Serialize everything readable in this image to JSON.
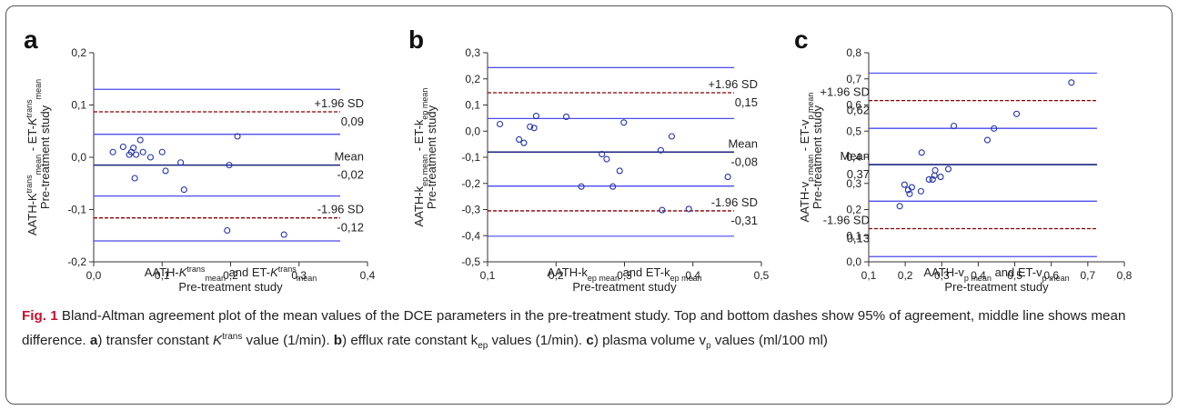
{
  "panels": [
    {
      "letter": "a",
      "ylabel": [
        "AATH-K",
        "trans",
        "mean",
        " - ET-",
        "K",
        "trans",
        "mean"
      ],
      "ylabel2": "Pre-treatment study",
      "xlabel": [
        "AATH-",
        "K",
        "trans",
        "mean",
        " and ET-",
        "K",
        "trans",
        "mean"
      ],
      "xlabel2": "Pre-treatment study",
      "annotations": {
        "upper_label": "+1.96 SD",
        "upper_value": "0,09",
        "mean_label": "Mean",
        "mean_value": "-0,02",
        "lower_label": "-1.96 SD",
        "lower_value": "-0,12"
      }
    },
    {
      "letter": "b",
      "ylabel": [
        "AATH-k",
        "ep mean",
        " - ET-k",
        "ep mean"
      ],
      "ylabel2": "Pre-treatment study",
      "xlabel": [
        "AATH-k",
        "ep mean",
        " and ET-k",
        "ep mean"
      ],
      "xlabel2": "Pre-treatment study",
      "annotations": {
        "upper_label": "+1.96 SD",
        "upper_value": "0,15",
        "mean_label": "Mean",
        "mean_value": "-0,08",
        "lower_label": "-1.96 SD",
        "lower_value": "-0,31"
      }
    },
    {
      "letter": "c",
      "ylabel": [
        "AATH-v",
        "p mean",
        " - ET-v",
        "p mean"
      ],
      "ylabel2": "Pre-treatment study",
      "xlabel": [
        "AATH-v",
        "p mean",
        " and ET-v",
        "p mean"
      ],
      "xlabel2": "Pre-treatment study",
      "annotations": {
        "upper_label": "+1.96 SD",
        "upper_value": "0,62",
        "mean_label": "Mean",
        "mean_value": "0,37",
        "lower_label": "-1.96 SD",
        "lower_value": "0,13"
      }
    }
  ],
  "caption": {
    "fig_label": "Fig. 1",
    "text1": " Bland-Altman agreement plot of the mean values of the DCE parameters in the pre-treatment study. Top and bottom dashes show 95% of agreement, middle line shows mean difference. ",
    "a": "a",
    "text2": ") transfer constant ",
    "ktrans_k": "K",
    "ktrans_sup": "trans",
    "text3": " value (1/min). ",
    "b": "b",
    "text4": ") efflux rate constant k",
    "kep_sub": "ep",
    "text5": " values (1/min). ",
    "c": "c",
    "text6": ") plasma volume v",
    "vp_sub": "p",
    "text7": " values (ml/100 ml)"
  },
  "colors": {
    "mean_line": "#1a237e",
    "limit_line": "#8b0000",
    "ci_line": "#4a4aee",
    "point": "#2233aa"
  },
  "chart_data": [
    {
      "type": "scatter",
      "xlim": [
        0.0,
        0.4
      ],
      "ylim": [
        -0.2,
        0.2
      ],
      "xticks": [
        "0,0",
        "0,1",
        "0,2",
        "0,3",
        "0,4"
      ],
      "yticks": [
        "0,2",
        "0,1",
        "0,0",
        "-0,1",
        "-0,2"
      ],
      "points": [
        [
          0.028,
          0.01
        ],
        [
          0.043,
          0.02
        ],
        [
          0.052,
          0.005
        ],
        [
          0.055,
          0.01
        ],
        [
          0.058,
          0.018
        ],
        [
          0.06,
          -0.04
        ],
        [
          0.062,
          0.005
        ],
        [
          0.068,
          0.033
        ],
        [
          0.072,
          0.01
        ],
        [
          0.083,
          0.0
        ],
        [
          0.1,
          0.01
        ],
        [
          0.105,
          -0.026
        ],
        [
          0.127,
          -0.01
        ],
        [
          0.132,
          -0.062
        ],
        [
          0.195,
          -0.14
        ],
        [
          0.198,
          -0.015
        ],
        [
          0.21,
          0.04
        ],
        [
          0.278,
          -0.148
        ]
      ],
      "mean": -0.015,
      "upper_limit": 0.087,
      "lower_limit": -0.116,
      "mean_ci": [
        -0.074,
        0.044
      ],
      "upper_ci": [
        0.044,
        0.13
      ],
      "lower_ci": [
        -0.16,
        -0.074
      ]
    },
    {
      "type": "scatter",
      "xlim": [
        0.1,
        0.5
      ],
      "ylim": [
        -0.5,
        0.3
      ],
      "xticks": [
        "0,1",
        "0,2",
        "0,3",
        "0,4",
        "0,5"
      ],
      "yticks": [
        "0,3",
        "0,2",
        "0,1",
        "0,0",
        "-0,1",
        "-0,2",
        "-0,3",
        "-0,4",
        "-0,5"
      ],
      "points": [
        [
          0.118,
          0.027
        ],
        [
          0.146,
          -0.032
        ],
        [
          0.153,
          -0.045
        ],
        [
          0.162,
          0.017
        ],
        [
          0.168,
          0.012
        ],
        [
          0.171,
          0.058
        ],
        [
          0.215,
          0.055
        ],
        [
          0.237,
          -0.212
        ],
        [
          0.267,
          -0.088
        ],
        [
          0.274,
          -0.107
        ],
        [
          0.283,
          -0.212
        ],
        [
          0.293,
          -0.152
        ],
        [
          0.299,
          0.033
        ],
        [
          0.353,
          -0.073
        ],
        [
          0.355,
          -0.302
        ],
        [
          0.369,
          -0.02
        ],
        [
          0.394,
          -0.298
        ],
        [
          0.451,
          -0.175
        ]
      ],
      "mean": -0.08,
      "upper_limit": 0.147,
      "lower_limit": -0.305,
      "mean_ci": [
        -0.21,
        0.048
      ],
      "upper_ci": [
        0.048,
        0.243
      ],
      "lower_ci": [
        -0.402,
        -0.21
      ]
    },
    {
      "type": "scatter",
      "xlim": [
        0.1,
        0.8
      ],
      "ylim": [
        0.0,
        0.8
      ],
      "xticks": [
        "0,1",
        "0,2",
        "0,3",
        "0,4",
        "0,5",
        "0,6",
        "0,7",
        "0,8"
      ],
      "yticks": [
        "0,8",
        "0,7",
        "0,6",
        "0,5",
        "0,4",
        "0,3",
        "0,2",
        "0,1",
        "0,0"
      ],
      "points": [
        [
          0.185,
          0.213
        ],
        [
          0.198,
          0.295
        ],
        [
          0.208,
          0.275
        ],
        [
          0.212,
          0.26
        ],
        [
          0.218,
          0.285
        ],
        [
          0.243,
          0.27
        ],
        [
          0.245,
          0.418
        ],
        [
          0.265,
          0.315
        ],
        [
          0.275,
          0.315
        ],
        [
          0.28,
          0.33
        ],
        [
          0.282,
          0.35
        ],
        [
          0.297,
          0.325
        ],
        [
          0.318,
          0.355
        ],
        [
          0.333,
          0.52
        ],
        [
          0.425,
          0.466
        ],
        [
          0.443,
          0.51
        ],
        [
          0.505,
          0.566
        ],
        [
          0.655,
          0.686
        ]
      ],
      "mean": 0.372,
      "upper_limit": 0.617,
      "lower_limit": 0.127,
      "mean_ci": [
        0.232,
        0.511
      ],
      "upper_ci": [
        0.511,
        0.722
      ],
      "lower_ci": [
        0.02,
        0.232
      ]
    }
  ]
}
